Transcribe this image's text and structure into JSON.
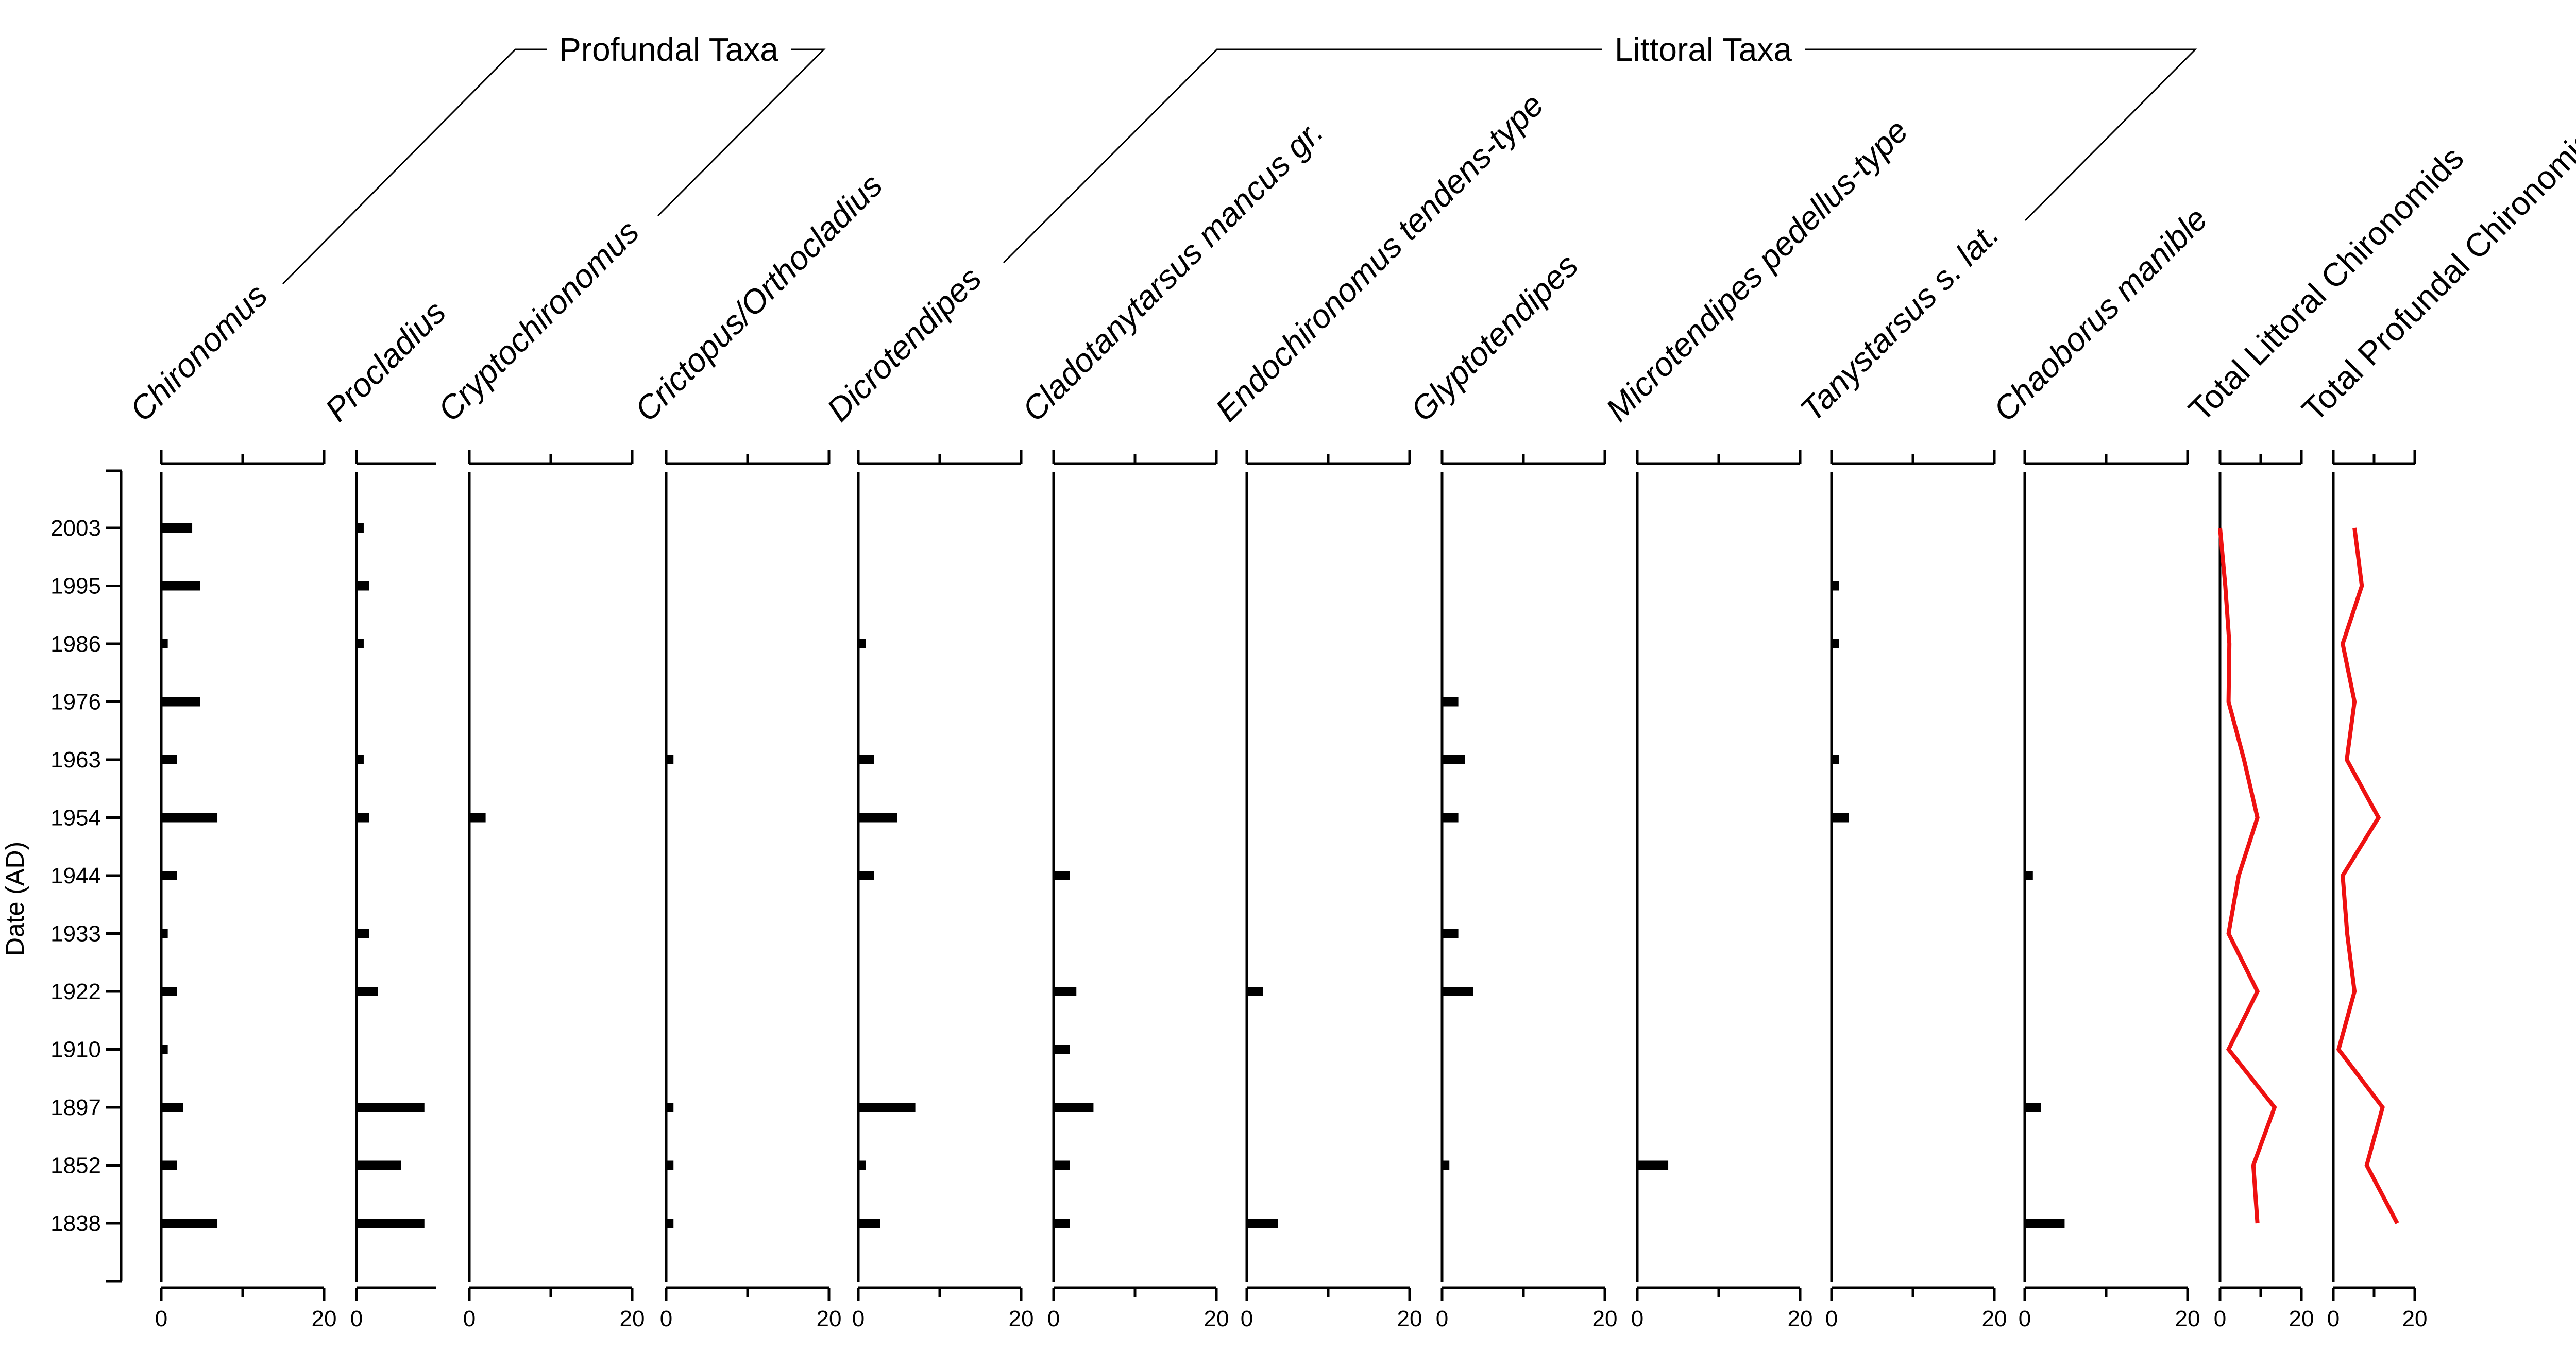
{
  "chart_data": {
    "type": "bar",
    "subtype": "stratigraphic diagram (horizontal bars per sample date, plus line profiles for totals)",
    "ylabel": "Date (AD)",
    "dates": [
      "2003",
      "1995",
      "1986",
      "1976",
      "1963",
      "1954",
      "1944",
      "1933",
      "1922",
      "1910",
      "1897",
      "1852",
      "1838"
    ],
    "groups": [
      {
        "label": "Profundal Taxa",
        "from_series": 0,
        "to_series": 2
      },
      {
        "label": "Littoral Taxa",
        "from_series": 4,
        "to_series": 9
      }
    ],
    "series": [
      {
        "name": "Chironomus",
        "kind": "bar",
        "xlim": [
          0,
          20
        ],
        "tick_labels": [
          "0",
          "20"
        ],
        "values": [
          3.8,
          4.8,
          0.8,
          4.8,
          1.9,
          6.9,
          1.9,
          0.8,
          1.9,
          0.8,
          2.7,
          1.9,
          6.9
        ]
      },
      {
        "name": "Procladius",
        "kind": "bar",
        "xlim": [
          0,
          10
        ],
        "tick_labels": [
          "0"
        ],
        "values": [
          0.9,
          1.6,
          0.9,
          0,
          0.9,
          1.6,
          0,
          1.6,
          2.7,
          0,
          8.5,
          5.6,
          8.5
        ]
      },
      {
        "name": "Cryptochironomus",
        "kind": "bar",
        "xlim": [
          0,
          20
        ],
        "tick_labels": [
          "0",
          "20"
        ],
        "values": [
          0,
          0,
          0,
          0,
          0,
          2.0,
          0,
          0,
          0,
          0,
          0,
          0,
          0
        ]
      },
      {
        "name": "Crictopus/Orthocladius",
        "kind": "bar",
        "xlim": [
          0,
          20
        ],
        "tick_labels": [
          "0",
          "20"
        ],
        "values": [
          0,
          0,
          0,
          0,
          0.9,
          0,
          0,
          0,
          0,
          0,
          0.9,
          0.9,
          0.9
        ]
      },
      {
        "name": "Dicrotendipes",
        "kind": "bar",
        "xlim": [
          0,
          20
        ],
        "tick_labels": [
          "0",
          "20"
        ],
        "values": [
          0,
          0,
          0.9,
          0,
          1.9,
          4.8,
          1.9,
          0,
          0,
          0,
          7.0,
          0.9,
          2.7
        ]
      },
      {
        "name": "Cladotanytarsus mancus gr.",
        "kind": "bar",
        "xlim": [
          0,
          20
        ],
        "tick_labels": [
          "0",
          "20"
        ],
        "values": [
          0,
          0,
          0,
          0,
          0,
          0,
          2.0,
          0,
          2.8,
          2.0,
          4.9,
          2.0,
          2.0
        ]
      },
      {
        "name": "Endochironomus tendens-type",
        "kind": "bar",
        "xlim": [
          0,
          20
        ],
        "tick_labels": [
          "0",
          "20"
        ],
        "values": [
          0,
          0,
          0,
          0,
          0,
          0,
          0,
          0,
          2.0,
          0,
          0,
          0,
          3.8
        ]
      },
      {
        "name": "Glyptotendipes",
        "kind": "bar",
        "xlim": [
          0,
          20
        ],
        "tick_labels": [
          "0",
          "20"
        ],
        "values": [
          0,
          0,
          0,
          2.0,
          2.8,
          2.0,
          0,
          2.0,
          3.8,
          0,
          0,
          0.9,
          0
        ]
      },
      {
        "name": "Microtendipes pedellus-type",
        "kind": "bar",
        "xlim": [
          0,
          20
        ],
        "tick_labels": [
          "0",
          "20"
        ],
        "values": [
          0,
          0,
          0,
          0,
          0,
          0,
          0,
          0,
          0,
          0,
          0,
          3.8,
          0
        ]
      },
      {
        "name": "Tanystarsus s. lat.",
        "kind": "bar",
        "xlim": [
          0,
          20
        ],
        "tick_labels": [
          "0",
          "20"
        ],
        "values": [
          0,
          0.9,
          0.9,
          0,
          0.9,
          2.1,
          0,
          0,
          0,
          0,
          0,
          0,
          0
        ]
      },
      {
        "name": "Chaoborus manible",
        "kind": "bar",
        "xlim": [
          0,
          20
        ],
        "tick_labels": [
          "0",
          "20"
        ],
        "values": [
          0,
          0,
          0,
          0,
          0,
          0,
          1.0,
          0,
          0,
          0,
          2.0,
          0,
          4.9
        ]
      },
      {
        "name": "Total Littoral Chironomids",
        "kind": "line",
        "color": "#ee1111",
        "xlim": [
          0,
          20
        ],
        "tick_labels": [
          "0",
          "20"
        ],
        "values": [
          0,
          1.3,
          2.3,
          2.1,
          5.9,
          9.2,
          4.6,
          2.1,
          9.2,
          2.1,
          13.4,
          8.2,
          9.2
        ]
      },
      {
        "name": "Total Profundal Chironomids",
        "kind": "line",
        "color": "#ee1111",
        "xlim": [
          0,
          20
        ],
        "tick_labels": [
          "0",
          "20"
        ],
        "values": [
          5.2,
          7.0,
          2.3,
          5.2,
          3.3,
          11.1,
          2.3,
          3.4,
          5.2,
          1.3,
          12.1,
          8.2,
          15.7
        ]
      }
    ]
  }
}
